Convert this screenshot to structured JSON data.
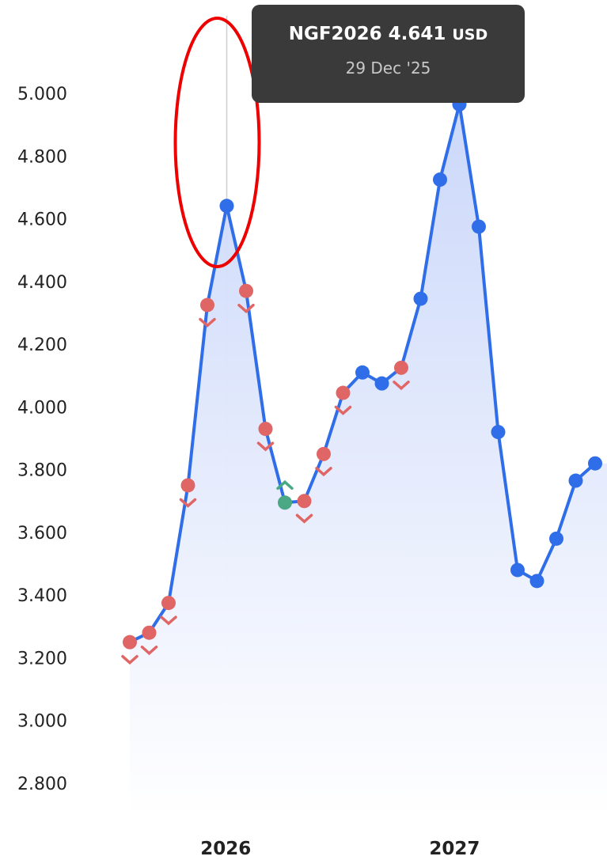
{
  "chart_data": {
    "type": "line",
    "title": "",
    "xlabel": "",
    "ylabel": "",
    "ylim": [
      2.7,
      5.25
    ],
    "y_ticks": [
      "5.000",
      "4.800",
      "4.600",
      "4.400",
      "4.200",
      "4.000",
      "3.800",
      "3.600",
      "3.400",
      "3.200",
      "3.000",
      "2.800"
    ],
    "x_ticks": [
      {
        "label": "2026",
        "x": 4.95
      },
      {
        "label": "2027",
        "x": 16.75
      }
    ],
    "series": [
      {
        "name": "NGF",
        "color": "#2f6ee8",
        "x": [
          0,
          1,
          2,
          3,
          4,
          5,
          6,
          7,
          8,
          9,
          10,
          11,
          12,
          13,
          14,
          15,
          16,
          17,
          18,
          19,
          20,
          21,
          22,
          23,
          24
        ],
        "values": [
          3.25,
          3.28,
          3.375,
          3.75,
          4.325,
          4.641,
          4.37,
          3.93,
          3.695,
          3.7,
          3.85,
          4.045,
          4.11,
          4.075,
          4.125,
          4.345,
          4.725,
          4.965,
          4.575,
          3.92,
          3.48,
          3.445,
          3.58,
          3.765,
          3.82
        ],
        "markers": [
          "down",
          "down",
          "down",
          "down",
          "down",
          "highlight",
          "down",
          "down",
          "up",
          "down",
          "down",
          "down",
          "none",
          "none",
          "down",
          "none",
          "none",
          "none",
          "none",
          "none",
          "none",
          "none",
          "none",
          "none",
          "none"
        ]
      }
    ],
    "marker_colors": {
      "down": "#e06666",
      "up": "#4aa884",
      "highlight": "#2f6ee8",
      "none": "#2f6ee8"
    },
    "annotation": {
      "type": "ellipse",
      "color": "#ee0000",
      "target_index": 5
    }
  },
  "tooltip": {
    "symbol": "NGF2026",
    "value": "4.641",
    "unit": "USD",
    "date": "29 Dec '25"
  }
}
